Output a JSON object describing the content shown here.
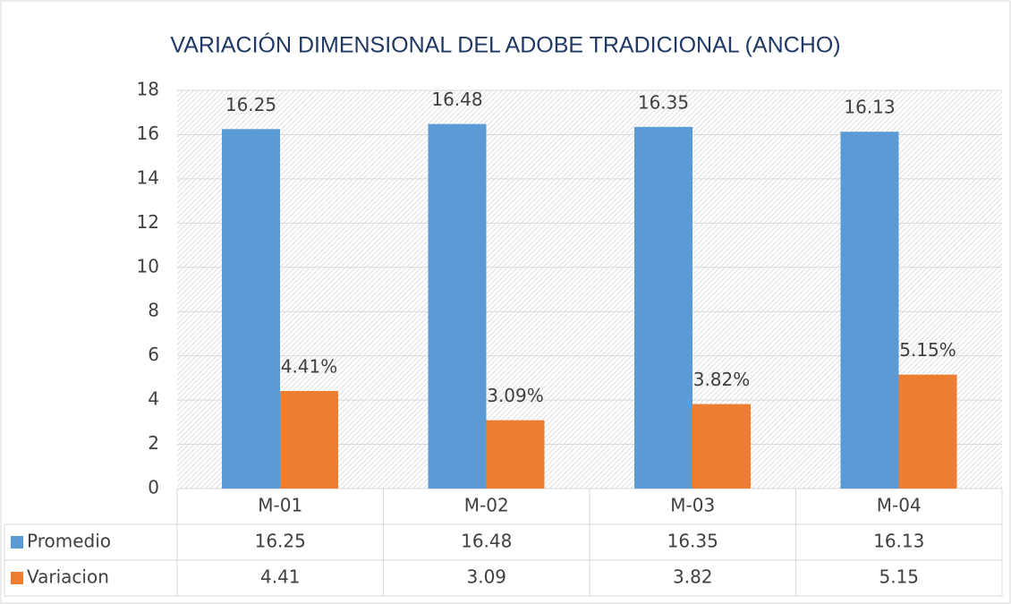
{
  "chart_data": {
    "type": "bar",
    "title": "VARIACIÓN DIMENSIONAL DEL ADOBE TRADICIONAL (ANCHO)",
    "categories": [
      "M-01",
      "M-02",
      "M-03",
      "M-04"
    ],
    "series": [
      {
        "name": "Promedio",
        "color": "#5b9bd5",
        "values": [
          16.25,
          16.48,
          16.35,
          16.13
        ]
      },
      {
        "name": "Variacion",
        "color": "#ed7d31",
        "values": [
          4.41,
          3.09,
          3.82,
          5.15
        ],
        "value_labels": [
          "4.41%",
          "3.09%",
          "3.82%",
          "5.15%"
        ]
      }
    ],
    "ylim": [
      0,
      18
    ],
    "yticks": [
      0,
      2,
      4,
      6,
      8,
      10,
      12,
      14,
      16,
      18
    ],
    "grid": true
  }
}
